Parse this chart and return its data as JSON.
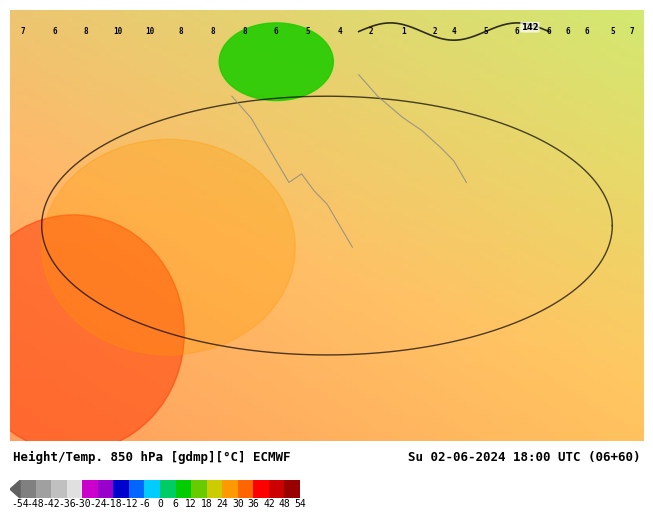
{
  "title_left": "Height/Temp. 850 hPa [gdmp][°C] ECMWF",
  "title_right": "Su 02-06-2024 18:00 UTC (06+60)",
  "colorbar_values": [
    -54,
    -48,
    -42,
    -36,
    -30,
    -24,
    -18,
    -12,
    -6,
    0,
    6,
    12,
    18,
    24,
    30,
    36,
    42,
    48,
    54
  ],
  "colorbar_colors": [
    "#808080",
    "#a0a0a0",
    "#c0c0c0",
    "#e0e0e0",
    "#cc00cc",
    "#9900cc",
    "#0000cc",
    "#0066ff",
    "#00ccff",
    "#00cc66",
    "#00cc00",
    "#66cc00",
    "#cccc00",
    "#ff9900",
    "#ff6600",
    "#ff0000",
    "#cc0000",
    "#990000"
  ],
  "bg_color": "#f5c842",
  "map_area_color": "#f5c842",
  "bottom_bar_height": 0.12,
  "label_fontsize": 9,
  "title_fontsize": 9,
  "colorbar_tick_fontsize": 7
}
